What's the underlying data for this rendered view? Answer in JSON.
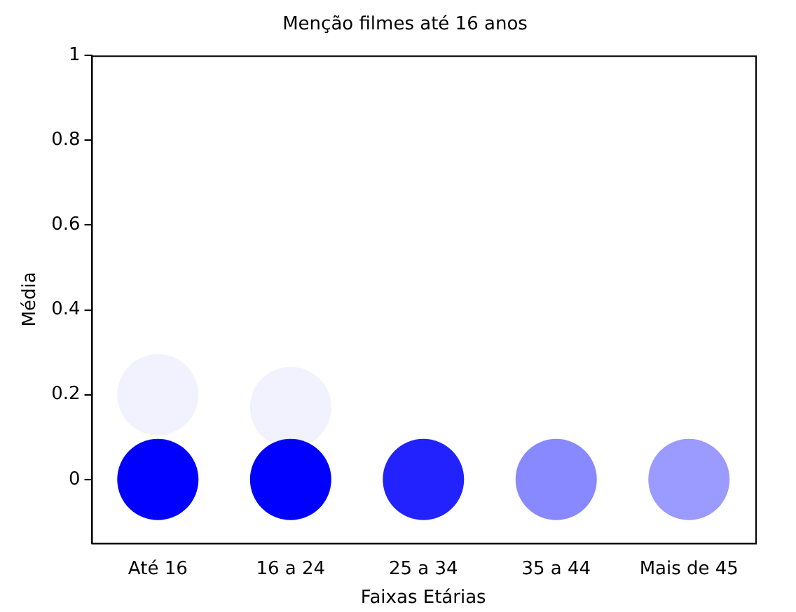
{
  "chart_data": {
    "type": "scatter",
    "title": "Menção filmes até 16 anos",
    "xlabel": "Faixas Etárias",
    "ylabel": "Média",
    "categories": [
      "Até 16",
      "16 a 24",
      "25 a 34",
      "35 a 44",
      "Mais de 45"
    ],
    "series": [
      {
        "values": [
          0.2,
          0.17,
          null,
          null,
          null
        ],
        "colors": [
          "#f2f2ff",
          "#f2f2ff",
          null,
          null,
          null
        ]
      },
      {
        "values": [
          0,
          0,
          0,
          0,
          0
        ],
        "colors": [
          "#0000ff",
          "#0000ff",
          "#2222ff",
          "#8888ff",
          "#9a9aff"
        ]
      }
    ],
    "ylim": [
      -0.15,
      1
    ],
    "yticks": [
      0,
      0.2,
      0.4,
      0.6,
      0.8,
      1
    ],
    "grid": false,
    "legend": false,
    "marker": "circle"
  }
}
